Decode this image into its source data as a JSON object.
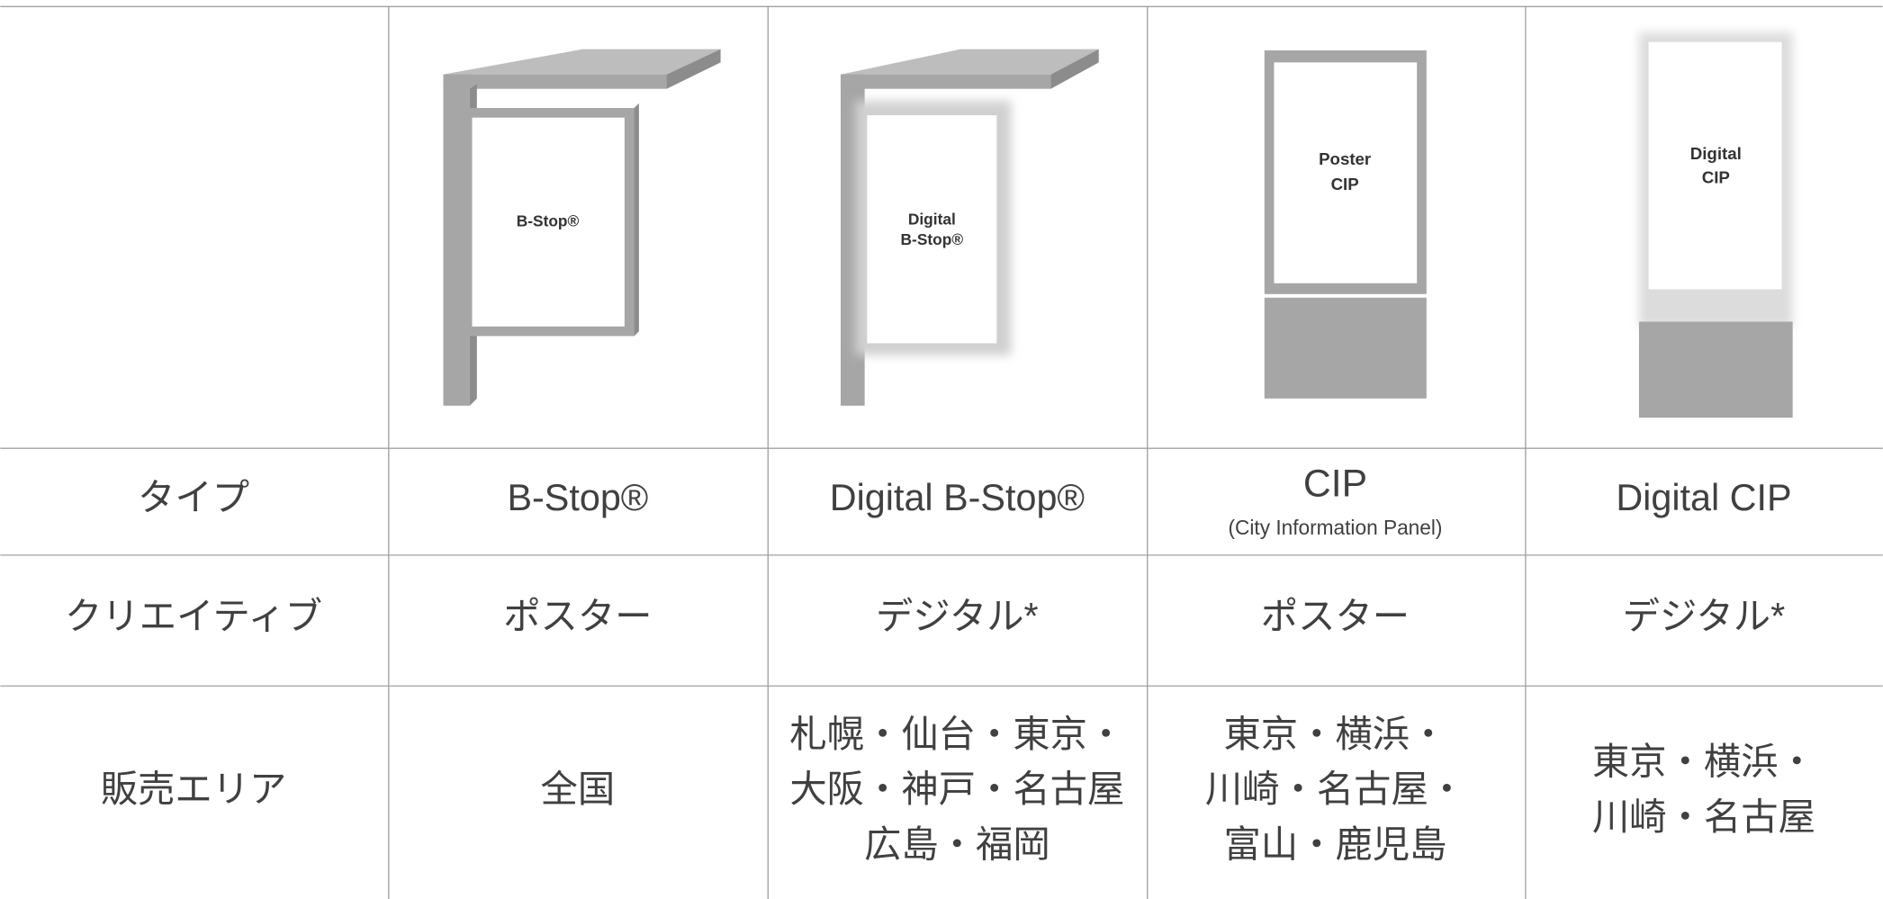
{
  "table": {
    "images": [
      {
        "label_lines": [
          "B-Stop®"
        ]
      },
      {
        "label_lines": [
          "Digital",
          "B-Stop®"
        ]
      },
      {
        "label_lines": [
          "Poster",
          "CIP"
        ]
      },
      {
        "label_lines": [
          "Digital",
          "CIP"
        ]
      }
    ],
    "rows": [
      [
        [
          "タイプ"
        ],
        [
          "B-Stop®"
        ],
        [
          "Digital B-Stop®"
        ],
        [
          "CIP",
          "(City Information Panel)"
        ],
        [
          "Digital CIP"
        ]
      ],
      [
        [
          "クリエイティブ"
        ],
        [
          "ポスター"
        ],
        [
          "デジタル*"
        ],
        [
          "ポスター"
        ],
        [
          "デジタル*"
        ]
      ],
      [
        [
          "販売エリア"
        ],
        [
          "全国"
        ],
        [
          "札幌・仙台・東京・",
          "大阪・神戸・名古屋",
          "広島・福岡"
        ],
        [
          "東京・横浜・",
          "川崎・名古屋・",
          "富山・鹿児島"
        ],
        [
          "東京・横浜・",
          "川崎・名古屋"
        ]
      ]
    ]
  }
}
